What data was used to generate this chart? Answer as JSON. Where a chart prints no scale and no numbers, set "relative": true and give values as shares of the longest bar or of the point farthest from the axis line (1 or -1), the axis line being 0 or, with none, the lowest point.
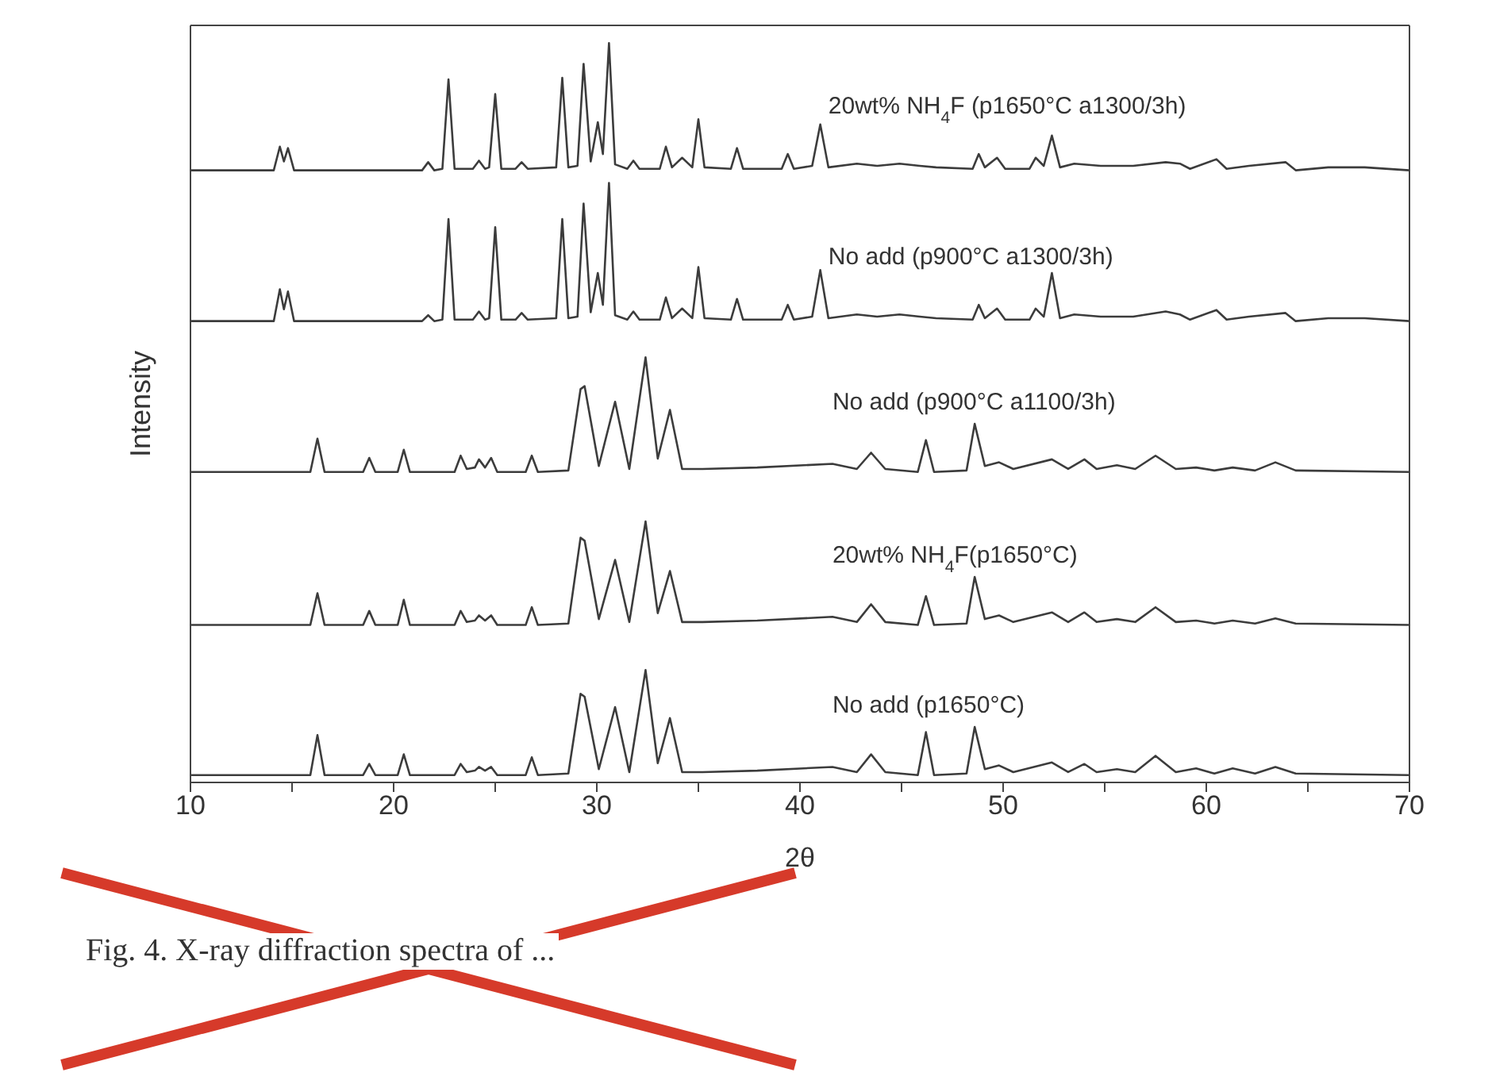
{
  "chart_data": {
    "type": "line",
    "relative": true,
    "xlabel": "2θ",
    "ylabel": "Intensity",
    "xlim": [
      10,
      70
    ],
    "xticks": [
      10,
      {
        "value": 15,
        "label": null
      },
      20,
      {
        "value": 25,
        "label": null
      },
      30,
      {
        "value": 35,
        "label": null
      },
      40,
      {
        "value": 45,
        "label": null
      },
      50,
      {
        "value": 55,
        "label": null
      },
      60,
      {
        "value": 65,
        "label": null
      },
      70
    ],
    "grid": false,
    "legend": false,
    "marker": "none",
    "line_style": "solid",
    "annotations": [
      "Fig. 4. X-ray diffraction spectra of ..."
    ],
    "series": [
      {
        "name": "20wt% NH$_{4}$F (p1650°C a1300/3h)",
        "color": "#3c3c3c",
        "x": [
          10,
          14.1,
          14.4,
          14.6,
          14.8,
          15.1,
          21.4,
          21.7,
          22.0,
          22.4,
          22.7,
          23.0,
          23.9,
          24.2,
          24.5,
          24.7,
          25.0,
          25.3,
          26.0,
          26.3,
          26.6,
          28.0,
          28.3,
          28.6,
          29.05,
          29.35,
          29.7,
          30.05,
          30.3,
          30.6,
          30.9,
          31.5,
          31.8,
          32.1,
          33.1,
          33.4,
          33.7,
          34.2,
          34.7,
          35.0,
          35.3,
          36.6,
          36.9,
          37.2,
          39.1,
          39.4,
          39.7,
          40.6,
          41.0,
          41.4,
          42.8,
          43.8,
          44.9,
          45.9,
          46.7,
          48.5,
          48.8,
          49.1,
          49.7,
          50.1,
          51.3,
          51.6,
          52.0,
          52.4,
          52.8,
          53.5,
          54.8,
          56.4,
          58.0,
          58.7,
          59.2,
          60.5,
          61.0,
          62.1,
          63.9,
          64.4,
          66.0,
          67.8,
          70
        ],
        "values": [
          0.828,
          0.828,
          0.86,
          0.84,
          0.858,
          0.828,
          0.828,
          0.839,
          0.828,
          0.83,
          0.951,
          0.83,
          0.83,
          0.841,
          0.83,
          0.832,
          0.931,
          0.83,
          0.83,
          0.839,
          0.83,
          0.832,
          0.953,
          0.832,
          0.834,
          0.972,
          0.84,
          0.893,
          0.85,
          1.0,
          0.836,
          0.83,
          0.841,
          0.83,
          0.83,
          0.86,
          0.832,
          0.845,
          0.832,
          0.897,
          0.832,
          0.83,
          0.858,
          0.83,
          0.83,
          0.85,
          0.83,
          0.834,
          0.89,
          0.832,
          0.837,
          0.834,
          0.837,
          0.834,
          0.832,
          0.83,
          0.85,
          0.832,
          0.845,
          0.83,
          0.83,
          0.845,
          0.834,
          0.875,
          0.832,
          0.837,
          0.834,
          0.834,
          0.839,
          0.837,
          0.83,
          0.843,
          0.83,
          0.834,
          0.839,
          0.828,
          0.832,
          0.832,
          0.828
        ]
      },
      {
        "name": "No add (p900°C a1300/3h)",
        "color": "#3c3c3c",
        "x": [
          10,
          14.1,
          14.4,
          14.6,
          14.8,
          15.1,
          21.4,
          21.7,
          22.0,
          22.4,
          22.7,
          23.0,
          23.9,
          24.2,
          24.5,
          24.7,
          25.0,
          25.3,
          26.0,
          26.3,
          26.6,
          28.0,
          28.3,
          28.6,
          29.05,
          29.35,
          29.7,
          30.05,
          30.3,
          30.6,
          30.9,
          31.5,
          31.8,
          32.1,
          33.1,
          33.4,
          33.7,
          34.2,
          34.7,
          35.0,
          35.3,
          36.6,
          36.9,
          37.2,
          39.1,
          39.4,
          39.7,
          40.6,
          41.0,
          41.4,
          42.8,
          43.8,
          44.9,
          45.9,
          46.7,
          48.5,
          48.8,
          49.1,
          49.7,
          50.1,
          51.3,
          51.6,
          52.0,
          52.4,
          52.8,
          53.5,
          54.8,
          56.4,
          58.0,
          58.7,
          59.2,
          60.5,
          61.0,
          62.1,
          63.9,
          64.4,
          66.0,
          67.8,
          70
        ],
        "values": [
          0.624,
          0.624,
          0.667,
          0.64,
          0.664,
          0.624,
          0.624,
          0.632,
          0.624,
          0.626,
          0.762,
          0.626,
          0.626,
          0.637,
          0.626,
          0.628,
          0.751,
          0.626,
          0.626,
          0.635,
          0.626,
          0.628,
          0.762,
          0.628,
          0.63,
          0.783,
          0.636,
          0.689,
          0.646,
          0.811,
          0.632,
          0.626,
          0.637,
          0.626,
          0.626,
          0.656,
          0.628,
          0.641,
          0.628,
          0.697,
          0.628,
          0.626,
          0.654,
          0.626,
          0.626,
          0.646,
          0.626,
          0.63,
          0.693,
          0.628,
          0.633,
          0.63,
          0.633,
          0.63,
          0.628,
          0.626,
          0.646,
          0.628,
          0.641,
          0.626,
          0.626,
          0.641,
          0.63,
          0.689,
          0.628,
          0.633,
          0.63,
          0.63,
          0.637,
          0.633,
          0.626,
          0.639,
          0.626,
          0.63,
          0.635,
          0.624,
          0.628,
          0.628,
          0.624
        ]
      },
      {
        "name": "No add (p900°C a1100/3h)",
        "color": "#3c3c3c",
        "x": [
          10,
          15.9,
          16.25,
          16.6,
          18.5,
          18.8,
          19.1,
          20.2,
          20.5,
          20.8,
          23.0,
          23.3,
          23.6,
          24.0,
          24.2,
          24.5,
          24.8,
          25.1,
          26.5,
          26.8,
          27.1,
          28.6,
          29.2,
          29.4,
          30.1,
          30.9,
          31.6,
          32.4,
          33.0,
          33.6,
          34.2,
          35.2,
          37.9,
          41.6,
          42.8,
          43.5,
          44.2,
          45.8,
          46.2,
          46.6,
          48.2,
          48.6,
          49.1,
          49.8,
          50.5,
          52.4,
          53.2,
          54.0,
          54.6,
          55.6,
          56.5,
          57.5,
          58.5,
          59.5,
          60.4,
          61.3,
          62.4,
          63.4,
          64.4,
          70
        ],
        "values": [
          0.42,
          0.42,
          0.465,
          0.42,
          0.42,
          0.439,
          0.42,
          0.42,
          0.45,
          0.42,
          0.42,
          0.442,
          0.424,
          0.426,
          0.437,
          0.426,
          0.439,
          0.42,
          0.42,
          0.442,
          0.42,
          0.422,
          0.532,
          0.536,
          0.428,
          0.515,
          0.424,
          0.575,
          0.438,
          0.504,
          0.424,
          0.424,
          0.426,
          0.431,
          0.424,
          0.446,
          0.424,
          0.42,
          0.463,
          0.42,
          0.422,
          0.485,
          0.428,
          0.433,
          0.424,
          0.437,
          0.424,
          0.437,
          0.424,
          0.429,
          0.424,
          0.442,
          0.424,
          0.426,
          0.422,
          0.426,
          0.422,
          0.433,
          0.422,
          0.42
        ]
      },
      {
        "name": "20wt% NH$_{4}$F(p1650°C)",
        "color": "#3c3c3c",
        "x": [
          10,
          15.9,
          16.25,
          16.6,
          18.5,
          18.8,
          19.1,
          20.2,
          20.5,
          20.8,
          23.0,
          23.3,
          23.6,
          24.0,
          24.2,
          24.5,
          24.8,
          25.1,
          26.5,
          26.8,
          27.1,
          28.6,
          29.2,
          29.4,
          30.1,
          30.9,
          31.6,
          32.4,
          33.0,
          33.6,
          34.2,
          35.2,
          37.9,
          41.6,
          42.8,
          43.5,
          44.2,
          45.8,
          46.2,
          46.6,
          48.2,
          48.6,
          49.1,
          49.8,
          50.5,
          52.4,
          53.2,
          54.0,
          54.6,
          55.6,
          56.5,
          57.5,
          58.5,
          59.5,
          60.4,
          61.3,
          62.4,
          63.4,
          64.4,
          70
        ],
        "values": [
          0.213,
          0.213,
          0.256,
          0.213,
          0.213,
          0.232,
          0.213,
          0.213,
          0.247,
          0.213,
          0.213,
          0.232,
          0.217,
          0.219,
          0.226,
          0.219,
          0.226,
          0.213,
          0.213,
          0.237,
          0.213,
          0.215,
          0.331,
          0.327,
          0.221,
          0.301,
          0.217,
          0.353,
          0.229,
          0.286,
          0.217,
          0.217,
          0.219,
          0.224,
          0.217,
          0.241,
          0.217,
          0.213,
          0.252,
          0.213,
          0.215,
          0.278,
          0.221,
          0.226,
          0.217,
          0.23,
          0.217,
          0.23,
          0.217,
          0.221,
          0.217,
          0.237,
          0.217,
          0.219,
          0.215,
          0.219,
          0.215,
          0.222,
          0.215,
          0.213
        ]
      },
      {
        "name": "No add (p1650°C)",
        "color": "#3c3c3c",
        "x": [
          10,
          15.9,
          16.25,
          16.6,
          18.5,
          18.8,
          19.1,
          20.2,
          20.5,
          20.8,
          23.0,
          23.3,
          23.6,
          24.0,
          24.2,
          24.5,
          24.8,
          25.1,
          26.5,
          26.8,
          27.1,
          28.6,
          29.2,
          29.4,
          30.1,
          30.9,
          31.6,
          32.4,
          33.0,
          33.6,
          34.2,
          35.2,
          37.9,
          41.6,
          42.8,
          43.5,
          44.2,
          45.8,
          46.2,
          46.6,
          48.2,
          48.6,
          49.1,
          49.8,
          50.5,
          52.4,
          53.2,
          54.0,
          54.6,
          55.6,
          56.5,
          57.5,
          58.5,
          59.5,
          60.4,
          61.3,
          62.4,
          63.4,
          64.4,
          70
        ],
        "values": [
          0.01,
          0.01,
          0.064,
          0.01,
          0.01,
          0.025,
          0.01,
          0.01,
          0.038,
          0.01,
          0.01,
          0.025,
          0.014,
          0.016,
          0.021,
          0.016,
          0.021,
          0.01,
          0.01,
          0.034,
          0.01,
          0.012,
          0.12,
          0.116,
          0.018,
          0.102,
          0.014,
          0.152,
          0.026,
          0.087,
          0.014,
          0.014,
          0.016,
          0.021,
          0.014,
          0.038,
          0.014,
          0.01,
          0.068,
          0.01,
          0.012,
          0.075,
          0.018,
          0.023,
          0.014,
          0.027,
          0.014,
          0.025,
          0.014,
          0.018,
          0.014,
          0.036,
          0.014,
          0.019,
          0.012,
          0.019,
          0.012,
          0.021,
          0.012,
          0.01
        ]
      }
    ]
  }
}
